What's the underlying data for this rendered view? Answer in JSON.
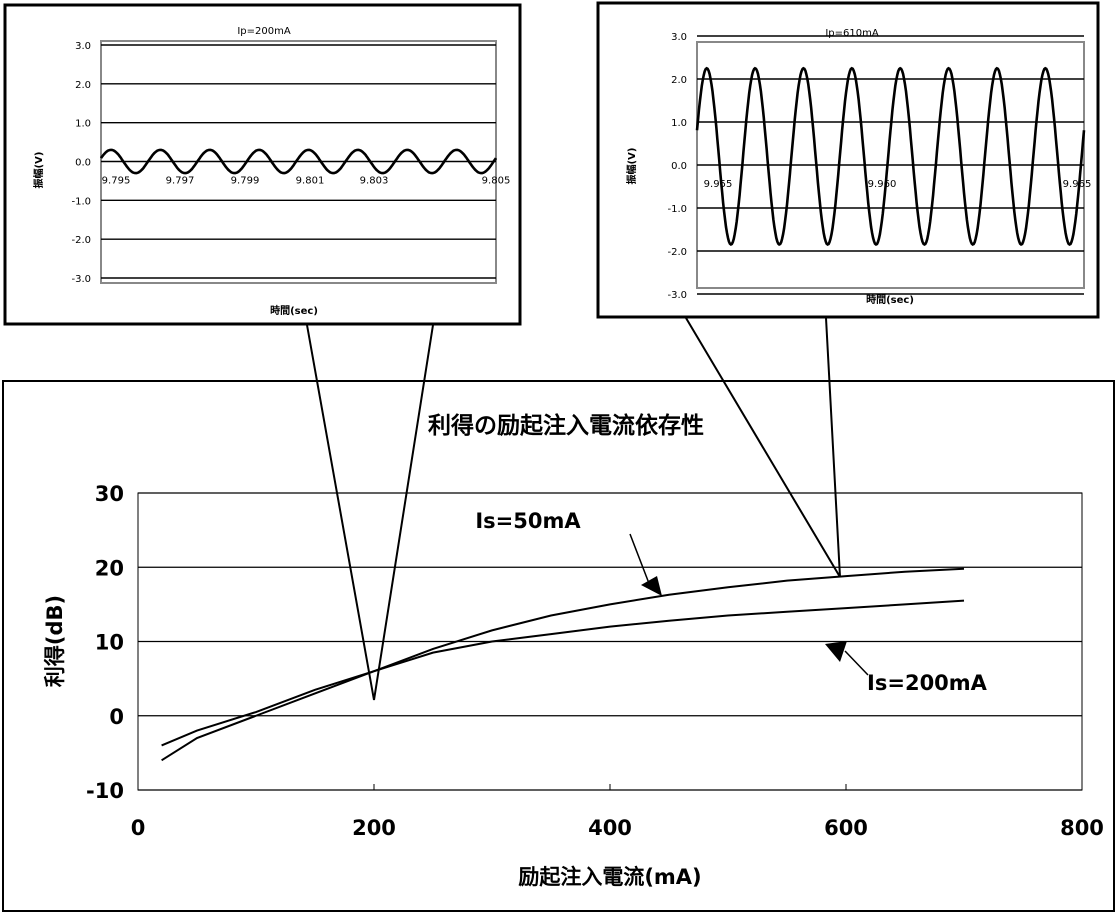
{
  "chart_data": [
    {
      "id": "main",
      "type": "line",
      "title": "利得の励起注入電流依存性",
      "xlabel": "励起注入電流(mA)",
      "ylabel": "利得(dB)",
      "xlim": [
        0,
        800
      ],
      "ylim": [
        -10,
        30
      ],
      "xticks": [
        0,
        200,
        400,
        600,
        800
      ],
      "yticks": [
        -10,
        0,
        10,
        20,
        30
      ],
      "grid": "horizontal",
      "series": [
        {
          "name": "Is=50mA",
          "x": [
            20,
            50,
            100,
            150,
            200,
            250,
            300,
            350,
            400,
            450,
            500,
            550,
            600,
            650,
            700
          ],
          "y": [
            -6,
            -3,
            0,
            3,
            6,
            9,
            11.5,
            13.5,
            15,
            16.3,
            17.3,
            18.2,
            18.8,
            19.4,
            19.8
          ]
        },
        {
          "name": "Is=200mA",
          "x": [
            20,
            50,
            100,
            150,
            200,
            250,
            300,
            350,
            400,
            450,
            500,
            550,
            600,
            650,
            700
          ],
          "y": [
            -4,
            -2,
            0.5,
            3.5,
            6,
            8.5,
            10,
            11,
            12,
            12.8,
            13.5,
            14,
            14.5,
            15,
            15.5
          ]
        }
      ],
      "annotations": [
        {
          "text": "Is=50mA",
          "series": "Is=50mA",
          "at_x": 440
        },
        {
          "text": "Is=200mA",
          "series": "Is=200mA",
          "at_x": 430
        }
      ],
      "callouts": [
        {
          "at_x": 200,
          "at_y": 6,
          "inset": "ip200"
        },
        {
          "at_x": 595,
          "at_y": 18.7,
          "inset": "ip610"
        }
      ]
    },
    {
      "id": "ip200",
      "type": "line",
      "title": "Ip=200mA",
      "xlabel": "時間(sec)",
      "ylabel": "振幅(V)",
      "xlim": [
        9.795,
        9.805
      ],
      "ylim": [
        -3.0,
        3.0
      ],
      "xtick_labels": [
        "9.795",
        "9.797",
        "9.799",
        "9.801",
        "9.803",
        "9.805"
      ],
      "ytick_labels": [
        "3.0",
        "2.0",
        "1.0",
        "0.0",
        "-1.0",
        "-2.0",
        "-3.0"
      ],
      "grid": "horizontal",
      "waveform": {
        "amplitude": 0.3,
        "cycles": 8
      }
    },
    {
      "id": "ip610",
      "type": "line",
      "title": "Ip=610mA",
      "xlabel": "時間(sec)",
      "ylabel": "振幅(V)",
      "xlim": [
        9.955,
        9.965
      ],
      "ylim": [
        -3.0,
        3.0
      ],
      "xtick_labels": [
        "9.955",
        "9.960",
        "9.965"
      ],
      "ytick_labels": [
        "3.0",
        "2.0",
        "1.0",
        "0.0",
        "-1.0",
        "-2.0",
        "-3.0"
      ],
      "grid": "horizontal",
      "waveform": {
        "amplitude": 2.05,
        "offset": 0.2,
        "cycles": 8
      }
    }
  ]
}
